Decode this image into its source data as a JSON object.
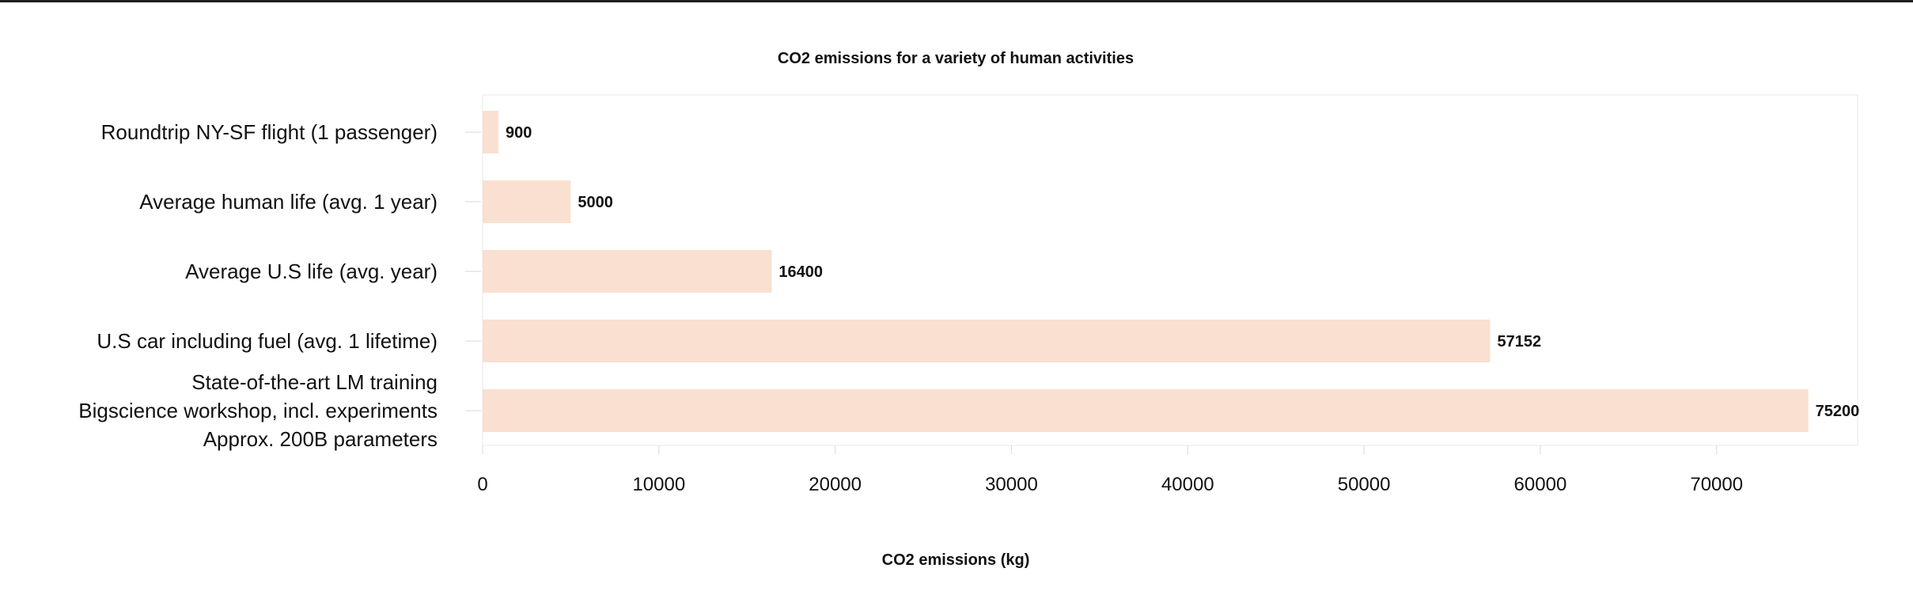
{
  "chart_data": {
    "type": "bar",
    "orientation": "horizontal",
    "title": "CO2 emissions for a variety of human activities",
    "xlabel": "CO2 emissions (kg)",
    "ylabel": "",
    "xlim": [
      0,
      78000
    ],
    "xticks": [
      0,
      10000,
      20000,
      30000,
      40000,
      50000,
      60000,
      70000
    ],
    "tick_labels": [
      "0",
      "10000",
      "20000",
      "30000",
      "40000",
      "50000",
      "60000",
      "70000"
    ],
    "bar_color": "#f9e0d0",
    "categories": [
      [
        "Roundtrip NY-SF flight (1 passenger)"
      ],
      [
        "Average human life (avg. 1 year)"
      ],
      [
        "Average U.S life (avg.  year)"
      ],
      [
        "U.S car including fuel (avg.  1 lifetime)"
      ],
      [
        "State-of-the-art LM training",
        "Bigscience workshop, incl. experiments",
        "Approx. 200B parameters"
      ]
    ],
    "values": [
      900,
      5000,
      16400,
      57152,
      75200
    ],
    "value_labels": [
      "900",
      "5000",
      "16400",
      "57152",
      "75200"
    ]
  }
}
